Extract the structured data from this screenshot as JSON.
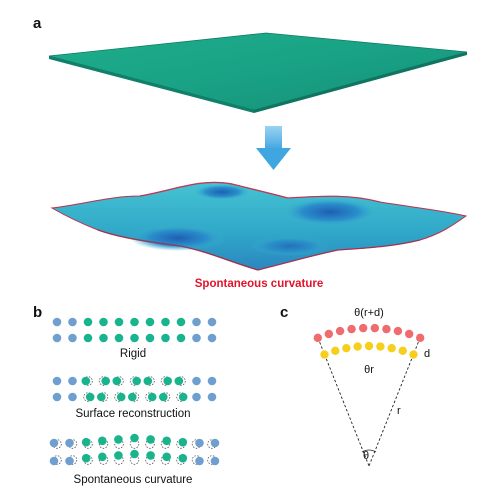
{
  "panels": {
    "a": {
      "label": "a",
      "caption": "Spontaneous curvature"
    },
    "b": {
      "label": "b",
      "rows": [
        {
          "caption": "Rigid"
        },
        {
          "caption": "Surface reconstruction"
        },
        {
          "caption": "Spontaneous curvature"
        }
      ]
    },
    "c": {
      "label": "c",
      "outer_arc_label": "θ(r+d)",
      "inner_arc_label": "θr",
      "thickness_label": "d",
      "radius_label": "r",
      "angle_label": "θ"
    }
  },
  "colors": {
    "sheet_green": "#19a285",
    "arrow_blue": "#5ab4e6",
    "atom_blue": "#6f9fcf",
    "atom_green": "#19b48e",
    "outer_arc_atoms": "#ef6b6d",
    "inner_arc_atoms": "#f5cf1c",
    "caption_red": "#e0142b"
  }
}
